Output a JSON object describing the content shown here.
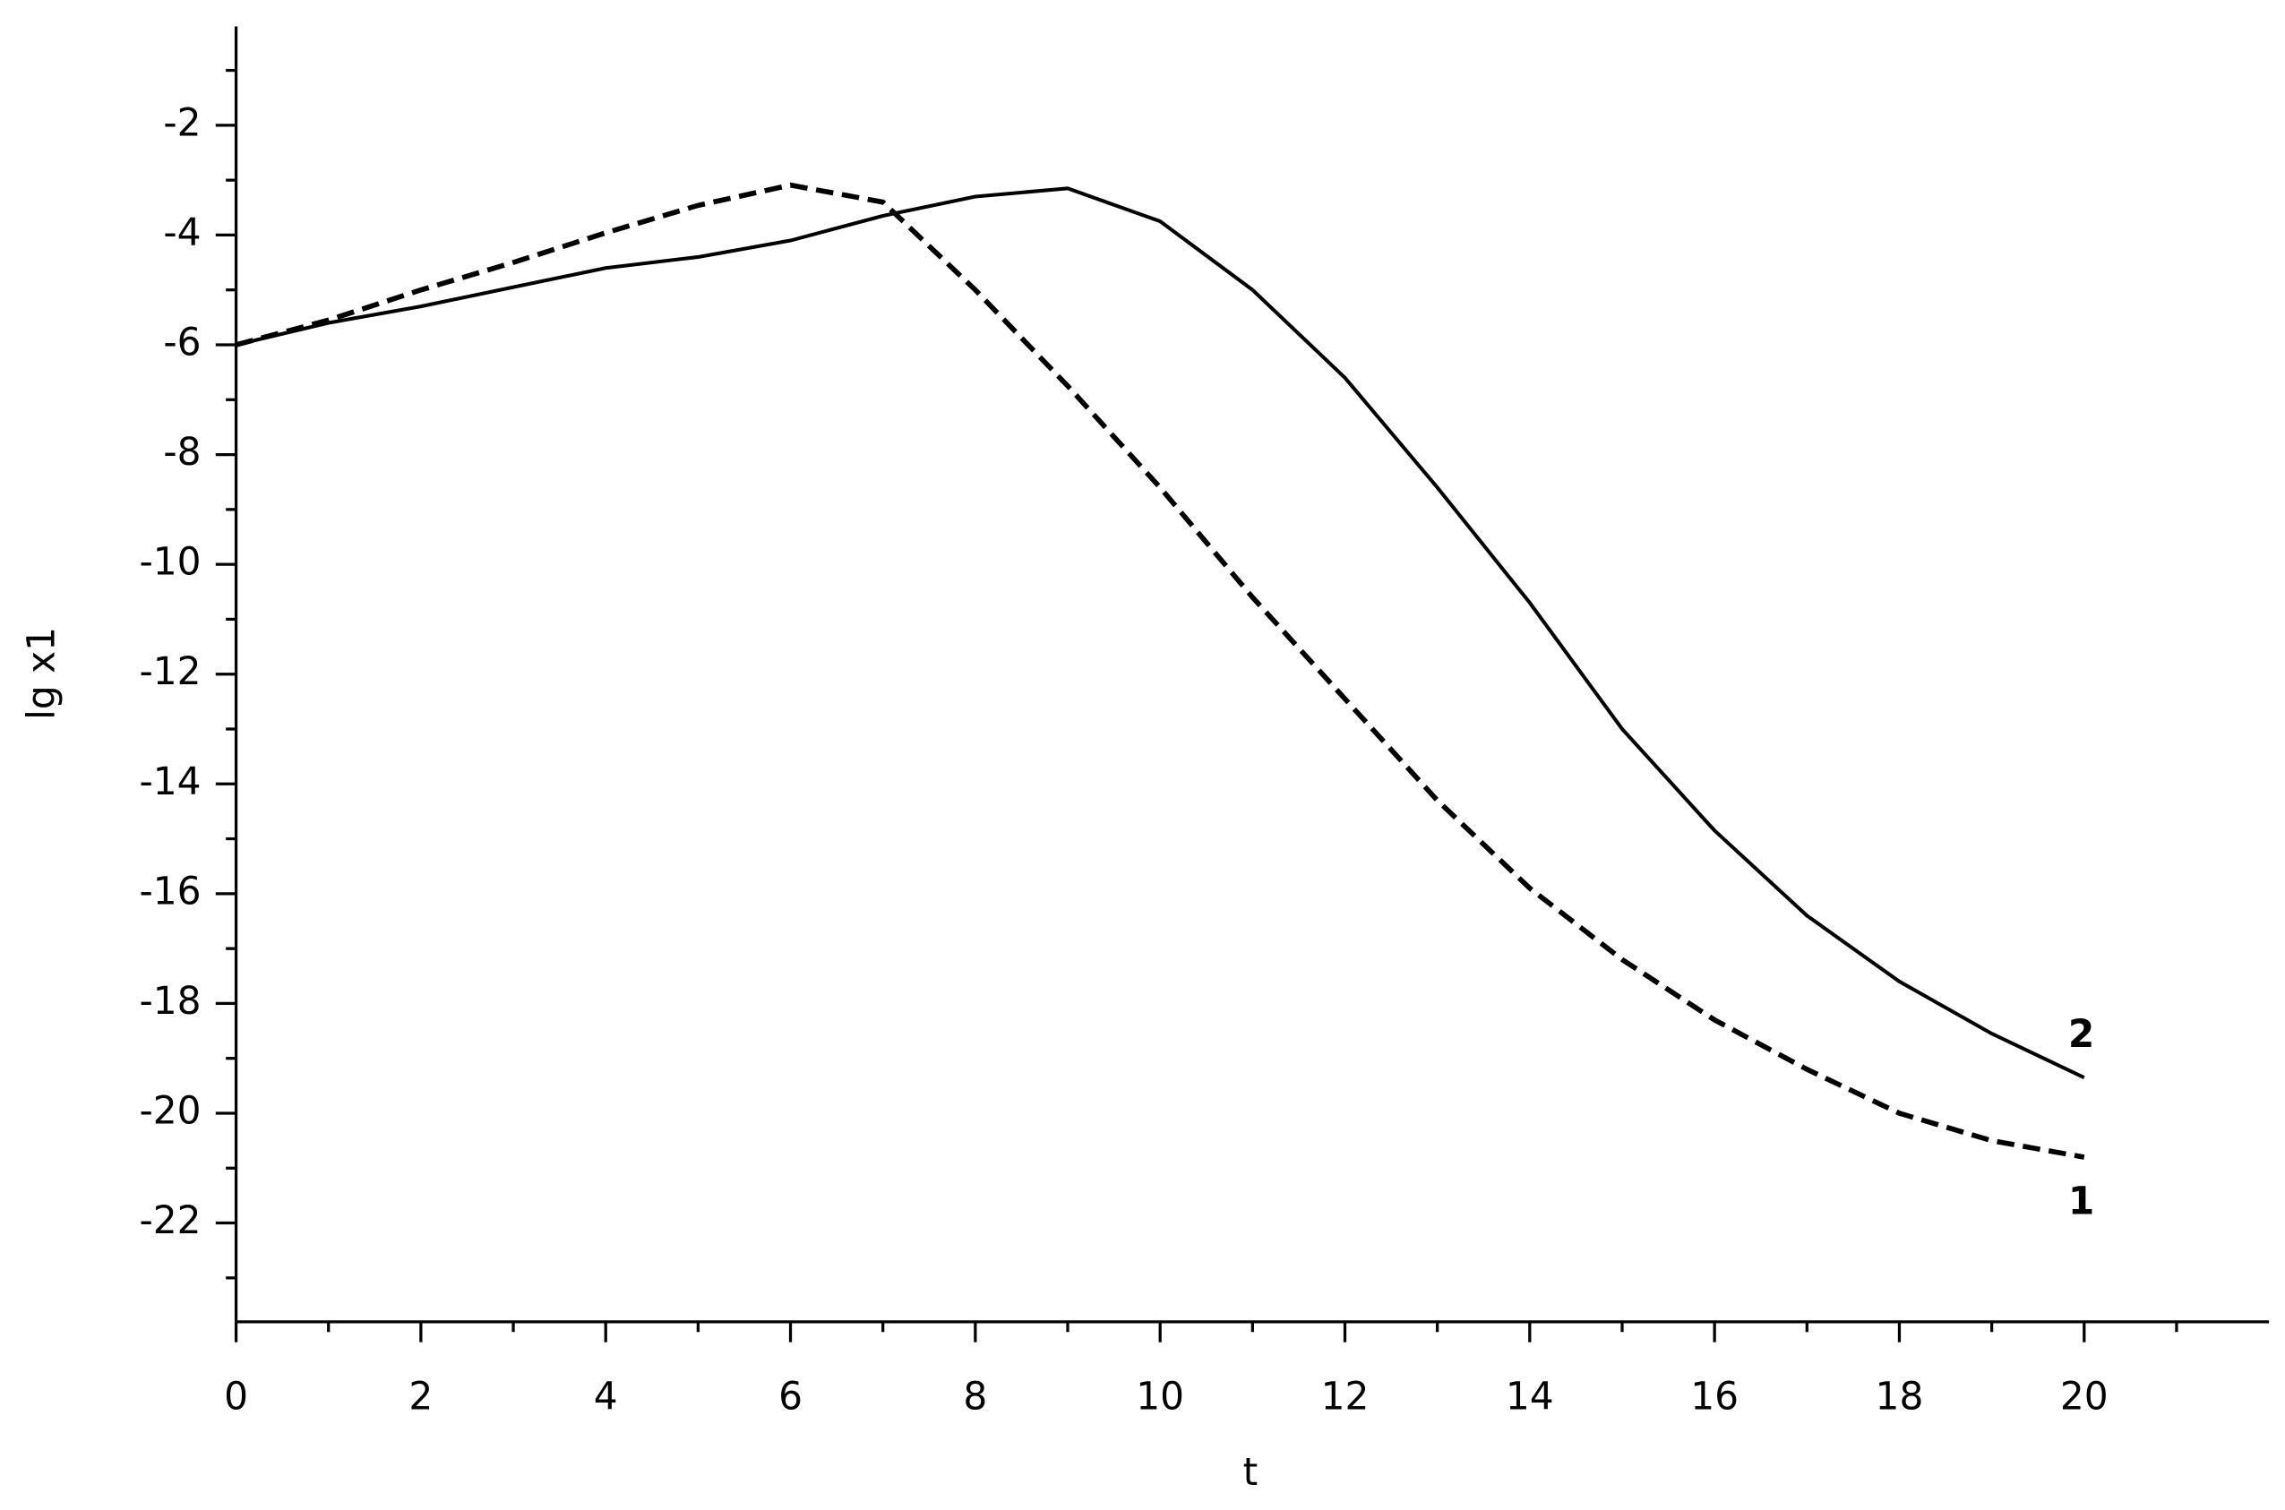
{
  "chart_data": {
    "type": "line",
    "x_label": "t",
    "y_label": "lg x1",
    "x": [
      0,
      1,
      2,
      3,
      4,
      5,
      6,
      7,
      8,
      9,
      10,
      11,
      12,
      13,
      14,
      15,
      16,
      17,
      18,
      19,
      20
    ],
    "series": [
      {
        "name": "1",
        "color": "#000000",
        "dashed": true,
        "values": [
          -6,
          -5.55,
          -5.0,
          -4.5,
          -3.96,
          -3.46,
          -3.09,
          -3.4,
          -5.0,
          -6.75,
          -8.6,
          -10.6,
          -12.45,
          -14.3,
          -15.9,
          -17.2,
          -18.3,
          -19.2,
          -20.0,
          -20.5,
          -20.8
        ]
      },
      {
        "name": "2",
        "color": "#000000",
        "dashed": false,
        "values": [
          -6,
          -5.6,
          -5.3,
          -4.95,
          -4.6,
          -4.4,
          -4.1,
          -3.65,
          -3.3,
          -3.15,
          -3.75,
          -5.0,
          -6.6,
          -8.6,
          -10.7,
          -13.0,
          -14.85,
          -16.4,
          -17.6,
          -18.55,
          -19.35
        ]
      }
    ],
    "xlim": [
      0,
      22
    ],
    "ylim": [
      -23.8,
      -0.2
    ],
    "xticks": [
      0,
      2,
      4,
      6,
      8,
      10,
      12,
      14,
      16,
      18,
      20
    ],
    "yticks": [
      -22,
      -20,
      -18,
      -16,
      -14,
      -12,
      -10,
      -8,
      -6,
      -4,
      -2
    ],
    "xminorticks": [
      1,
      3,
      5,
      7,
      9,
      11,
      13,
      15,
      17,
      19,
      21
    ],
    "yminorticks": [
      -23,
      -21,
      -19,
      -17,
      -15,
      -13,
      -11,
      -9,
      -7,
      -5,
      -3,
      -1
    ],
    "grid": false
  }
}
